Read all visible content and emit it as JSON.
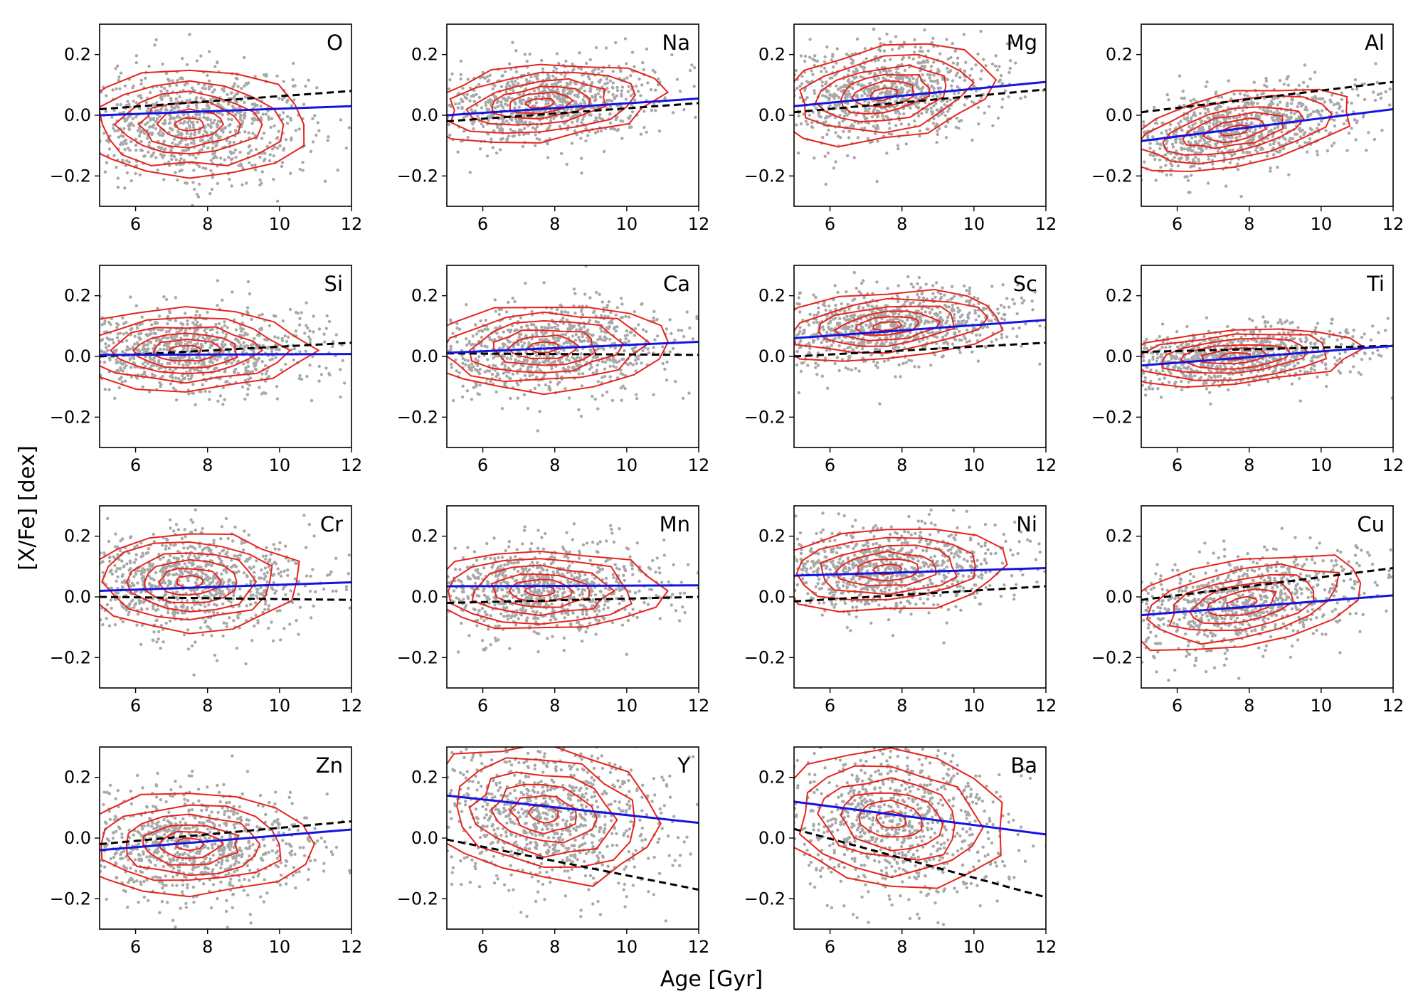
{
  "chart_data": {
    "type": "scatter",
    "figure": {
      "xlabel": "Age [Gyr]",
      "ylabel": "[X/Fe] [dex]",
      "xlim": [
        5,
        12
      ],
      "ylim": [
        -0.3,
        0.3
      ],
      "xticks": [
        6,
        8,
        10,
        12
      ],
      "yticks": [
        -0.2,
        0.0,
        0.2
      ],
      "ytick_labels": [
        "−0.2",
        "0.0",
        "0.2"
      ],
      "layout": "4x4 grid, 15 panels",
      "colors": {
        "points": "#a8a8a8",
        "contours": "#e8231c",
        "fit_line": "#1414e0",
        "reference_line": "#000000"
      }
    },
    "panels": [
      {
        "element": "O",
        "center": [
          7.5,
          -0.03
        ],
        "spread": [
          1.6,
          0.085
        ],
        "tilt": 0.0,
        "fit": [
          [
            5,
            0.0
          ],
          [
            12,
            0.03
          ]
        ],
        "ref": [
          [
            5,
            0.02
          ],
          [
            12,
            0.08
          ]
        ]
      },
      {
        "element": "Na",
        "center": [
          7.6,
          0.04
        ],
        "spread": [
          1.6,
          0.06
        ],
        "tilt": 0.01,
        "fit": [
          [
            5,
            0.0
          ],
          [
            12,
            0.055
          ]
        ],
        "ref": [
          [
            5,
            -0.02
          ],
          [
            12,
            0.04
          ]
        ]
      },
      {
        "element": "Mg",
        "center": [
          7.5,
          0.07
        ],
        "spread": [
          1.5,
          0.075
        ],
        "tilt": 0.015,
        "fit": [
          [
            5,
            0.03
          ],
          [
            12,
            0.11
          ]
        ],
        "ref": [
          [
            5,
            0.01
          ],
          [
            12,
            0.085
          ]
        ]
      },
      {
        "element": "Al",
        "center": [
          7.6,
          -0.05
        ],
        "spread": [
          1.6,
          0.06
        ],
        "tilt": 0.02,
        "fit": [
          [
            5,
            -0.085
          ],
          [
            12,
            0.02
          ]
        ],
        "ref": [
          [
            5,
            0.01
          ],
          [
            12,
            0.11
          ]
        ]
      },
      {
        "element": "Si",
        "center": [
          7.4,
          0.02
        ],
        "spread": [
          1.7,
          0.065
        ],
        "tilt": 0.0,
        "fit": [
          [
            5,
            0.005
          ],
          [
            12,
            0.008
          ]
        ],
        "ref": [
          [
            5,
            0.0
          ],
          [
            12,
            0.045
          ]
        ]
      },
      {
        "element": "Ca",
        "center": [
          7.7,
          0.03
        ],
        "spread": [
          1.7,
          0.07
        ],
        "tilt": 0.005,
        "fit": [
          [
            5,
            0.012
          ],
          [
            12,
            0.048
          ]
        ],
        "ref": [
          [
            5,
            0.01
          ],
          [
            12,
            0.005
          ]
        ]
      },
      {
        "element": "Sc",
        "center": [
          7.6,
          0.1
        ],
        "spread": [
          1.6,
          0.055
        ],
        "tilt": 0.01,
        "fit": [
          [
            5,
            0.06
          ],
          [
            12,
            0.12
          ]
        ],
        "ref": [
          [
            5,
            0.0
          ],
          [
            12,
            0.045
          ]
        ]
      },
      {
        "element": "Ti",
        "center": [
          7.6,
          0.0
        ],
        "spread": [
          1.7,
          0.045
        ],
        "tilt": 0.008,
        "fit": [
          [
            5,
            -0.03
          ],
          [
            12,
            0.035
          ]
        ],
        "ref": [
          [
            5,
            0.015
          ],
          [
            12,
            0.035
          ]
        ]
      },
      {
        "element": "Cr",
        "center": [
          7.5,
          0.05
        ],
        "spread": [
          1.5,
          0.08
        ],
        "tilt": 0.0,
        "fit": [
          [
            5,
            0.02
          ],
          [
            12,
            0.048
          ]
        ],
        "ref": [
          [
            5,
            0.0
          ],
          [
            12,
            -0.01
          ]
        ]
      },
      {
        "element": "Mn",
        "center": [
          7.6,
          0.02
        ],
        "spread": [
          1.6,
          0.065
        ],
        "tilt": 0.0,
        "fit": [
          [
            5,
            0.035
          ],
          [
            12,
            0.038
          ]
        ],
        "ref": [
          [
            5,
            -0.02
          ],
          [
            12,
            0.0
          ]
        ]
      },
      {
        "element": "Ni",
        "center": [
          7.6,
          0.09
        ],
        "spread": [
          1.6,
          0.065
        ],
        "tilt": 0.005,
        "fit": [
          [
            5,
            0.07
          ],
          [
            12,
            0.095
          ]
        ],
        "ref": [
          [
            5,
            -0.015
          ],
          [
            12,
            0.035
          ]
        ]
      },
      {
        "element": "Cu",
        "center": [
          7.8,
          -0.02
        ],
        "spread": [
          1.7,
          0.07
        ],
        "tilt": 0.02,
        "fit": [
          [
            5,
            -0.06
          ],
          [
            12,
            0.005
          ]
        ],
        "ref": [
          [
            5,
            -0.01
          ],
          [
            12,
            0.095
          ]
        ]
      },
      {
        "element": "Zn",
        "center": [
          7.5,
          -0.02
        ],
        "spread": [
          1.6,
          0.08
        ],
        "tilt": 0.0,
        "fit": [
          [
            5,
            -0.04
          ],
          [
            12,
            0.028
          ]
        ],
        "ref": [
          [
            5,
            -0.02
          ],
          [
            12,
            0.055
          ]
        ]
      },
      {
        "element": "Y",
        "center": [
          7.7,
          0.08
        ],
        "spread": [
          1.6,
          0.11
        ],
        "tilt": -0.01,
        "fit": [
          [
            5,
            0.14
          ],
          [
            12,
            0.05
          ]
        ],
        "ref": [
          [
            5,
            -0.005
          ],
          [
            12,
            -0.17
          ]
        ]
      },
      {
        "element": "Ba",
        "center": [
          7.7,
          0.06
        ],
        "spread": [
          1.6,
          0.11
        ],
        "tilt": -0.01,
        "fit": [
          [
            5,
            0.12
          ],
          [
            12,
            0.012
          ]
        ],
        "ref": [
          [
            5,
            0.03
          ],
          [
            12,
            -0.195
          ]
        ]
      }
    ]
  }
}
